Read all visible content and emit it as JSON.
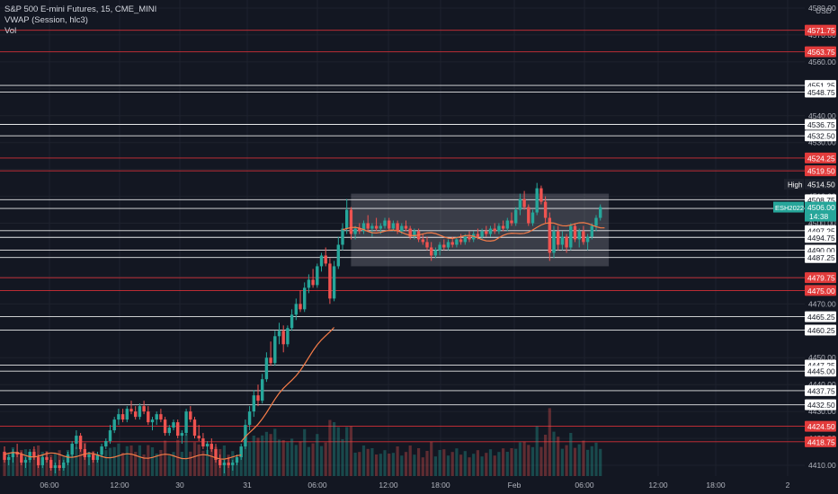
{
  "legend": {
    "symbol_line": "S&P 500 E-mini Futures, 15, CME_MINI",
    "indicator_vwap": "VWAP (Session, hlc3)",
    "indicator_vol": "Vol"
  },
  "currency": "USD",
  "colors": {
    "background": "#131722",
    "up": "#26a69a",
    "down": "#ef5350",
    "vwap": "#f57c48",
    "support_line": "#ffffff",
    "resistance_line": "#e8333a",
    "price_tag": "#26a69a"
  },
  "chart_data": {
    "type": "candlestick",
    "title": "S&P 500 E-mini Futures, 15, CME_MINI",
    "ylim": [
      4406,
      4583
    ],
    "y_ticks": [
      4410,
      4420,
      4430,
      4440,
      4450,
      4460,
      4470,
      4480,
      4490,
      4500,
      4510,
      4520,
      4530,
      4540,
      4550,
      4560,
      4570,
      4580
    ],
    "x_ticks": [
      "06:00",
      "12:00",
      "30",
      "31",
      "06:00",
      "12:00",
      "18:00",
      "Feb",
      "06:00",
      "12:00",
      "18:00",
      "2"
    ],
    "horizontal_levels": [
      {
        "price": 4571.75,
        "label": "4571.75",
        "kind": "resistance"
      },
      {
        "price": 4563.75,
        "label": "4563.75",
        "kind": "resistance"
      },
      {
        "price": 4551.25,
        "label": "4551.25",
        "kind": "support"
      },
      {
        "price": 4548.75,
        "label": "4548.75",
        "kind": "support"
      },
      {
        "price": 4536.75,
        "label": "4536.75",
        "kind": "support"
      },
      {
        "price": 4532.5,
        "label": "4532.50",
        "kind": "support"
      },
      {
        "price": 4524.25,
        "label": "4524.25",
        "kind": "resistance"
      },
      {
        "price": 4519.5,
        "label": "4519.50",
        "kind": "resistance"
      },
      {
        "price": 4508.75,
        "label": "4508.75",
        "kind": "support"
      },
      {
        "price": 4505.5,
        "label": "4505.50",
        "kind": "support"
      },
      {
        "price": 4497.25,
        "label": "4497.25",
        "kind": "support"
      },
      {
        "price": 4494.75,
        "label": "4494.75",
        "kind": "support"
      },
      {
        "price": 4490.0,
        "label": "4490.00",
        "kind": "support"
      },
      {
        "price": 4487.25,
        "label": "4487.25",
        "kind": "support"
      },
      {
        "price": 4479.75,
        "label": "4479.75",
        "kind": "resistance"
      },
      {
        "price": 4475.0,
        "label": "4475.00",
        "kind": "resistance"
      },
      {
        "price": 4465.25,
        "label": "4465.25",
        "kind": "support"
      },
      {
        "price": 4460.25,
        "label": "4460.25",
        "kind": "support"
      },
      {
        "price": 4447.25,
        "label": "4447.25",
        "kind": "support"
      },
      {
        "price": 4445.0,
        "label": "4445.00",
        "kind": "support"
      },
      {
        "price": 4437.75,
        "label": "4437.75",
        "kind": "support"
      },
      {
        "price": 4432.5,
        "label": "4432.50",
        "kind": "support"
      },
      {
        "price": 4424.5,
        "label": "4424.50",
        "kind": "resistance"
      },
      {
        "price": 4418.75,
        "label": "4418.75",
        "kind": "resistance"
      }
    ],
    "high_marker": {
      "label": "High",
      "price": 4514.5,
      "price_label": "4514.50"
    },
    "last_price": {
      "symbol": "ESH2022",
      "price": 4506.0,
      "price_label": "4506.00",
      "countdown": "14:38"
    },
    "range_box": {
      "start_bar": 82,
      "end_bar": 143,
      "top": 4511,
      "bottom": 4484
    },
    "question_marks": [
      {
        "text": "?",
        "bar": 195,
        "price": 4540
      },
      {
        "text": "?",
        "bar": 192,
        "price": 4455
      }
    ],
    "candles": [
      [
        4415,
        4417,
        4411,
        4412
      ],
      [
        4412,
        4414,
        4410,
        4413
      ],
      [
        4413,
        4416,
        4411,
        4415
      ],
      [
        4415,
        4418,
        4413,
        4414
      ],
      [
        4414,
        4415,
        4410,
        4411
      ],
      [
        4411,
        4413,
        4409,
        4412
      ],
      [
        4412,
        4416,
        4411,
        4415
      ],
      [
        4415,
        4417,
        4412,
        4413
      ],
      [
        4413,
        4414,
        4409,
        4410
      ],
      [
        4410,
        4414,
        4409,
        4413
      ],
      [
        4413,
        4415,
        4411,
        4412
      ],
      [
        4412,
        4413,
        4408,
        4409
      ],
      [
        4409,
        4411,
        4407,
        4410
      ],
      [
        4410,
        4412,
        4408,
        4409
      ],
      [
        4409,
        4412,
        4408,
        4411
      ],
      [
        4411,
        4415,
        4410,
        4414
      ],
      [
        4414,
        4419,
        4413,
        4418
      ],
      [
        4418,
        4423,
        4416,
        4421
      ],
      [
        4421,
        4422,
        4415,
        4416
      ],
      [
        4416,
        4418,
        4412,
        4413
      ],
      [
        4413,
        4415,
        4410,
        4414
      ],
      [
        4414,
        4415,
        4411,
        4412
      ],
      [
        4412,
        4415,
        4411,
        4414
      ],
      [
        4414,
        4418,
        4413,
        4417
      ],
      [
        4417,
        4420,
        4416,
        4419
      ],
      [
        4419,
        4425,
        4418,
        4423
      ],
      [
        4423,
        4428,
        4422,
        4427
      ],
      [
        4427,
        4431,
        4425,
        4429
      ],
      [
        4429,
        4431,
        4426,
        4427
      ],
      [
        4427,
        4432,
        4426,
        4431
      ],
      [
        4431,
        4434,
        4429,
        4430
      ],
      [
        4430,
        4432,
        4427,
        4428
      ],
      [
        4428,
        4433,
        4427,
        4432
      ],
      [
        4432,
        4434,
        4429,
        4430
      ],
      [
        4430,
        4432,
        4425,
        4426
      ],
      [
        4426,
        4428,
        4423,
        4427
      ],
      [
        4427,
        4430,
        4425,
        4429
      ],
      [
        4429,
        4431,
        4426,
        4427
      ],
      [
        4427,
        4428,
        4421,
        4422
      ],
      [
        4422,
        4425,
        4421,
        4424
      ],
      [
        4424,
        4427,
        4423,
        4426
      ],
      [
        4426,
        4427,
        4420,
        4421
      ],
      [
        4421,
        4423,
        4418,
        4422
      ],
      [
        4422,
        4431,
        4421,
        4430
      ],
      [
        4430,
        4432,
        4426,
        4427
      ],
      [
        4427,
        4428,
        4420,
        4421
      ],
      [
        4421,
        4425,
        4419,
        4420
      ],
      [
        4420,
        4422,
        4416,
        4417
      ],
      [
        4417,
        4419,
        4414,
        4418
      ],
      [
        4418,
        4420,
        4415,
        4416
      ],
      [
        4416,
        4418,
        4411,
        4412
      ],
      [
        4412,
        4414,
        4409,
        4410
      ],
      [
        4410,
        4412,
        4407,
        4411
      ],
      [
        4411,
        4413,
        4409,
        4410
      ],
      [
        4410,
        4412,
        4408,
        4411
      ],
      [
        4411,
        4414,
        4410,
        4413
      ],
      [
        4413,
        4418,
        4412,
        4417
      ],
      [
        4417,
        4427,
        4416,
        4425
      ],
      [
        4425,
        4432,
        4423,
        4430
      ],
      [
        4430,
        4438,
        4428,
        4436
      ],
      [
        4436,
        4440,
        4432,
        4434
      ],
      [
        4434,
        4444,
        4433,
        4442
      ],
      [
        4442,
        4452,
        4441,
        4450
      ],
      [
        4450,
        4456,
        4447,
        4448
      ],
      [
        4448,
        4460,
        4447,
        4458
      ],
      [
        4458,
        4463,
        4455,
        4460
      ],
      [
        4460,
        4462,
        4452,
        4455
      ],
      [
        4455,
        4462,
        4454,
        4461
      ],
      [
        4461,
        4468,
        4460,
        4466
      ],
      [
        4466,
        4472,
        4464,
        4470
      ],
      [
        4470,
        4475,
        4467,
        4468
      ],
      [
        4468,
        4478,
        4467,
        4476
      ],
      [
        4476,
        4481,
        4474,
        4479
      ],
      [
        4479,
        4483,
        4476,
        4477
      ],
      [
        4477,
        4485,
        4476,
        4484
      ],
      [
        4484,
        4489,
        4482,
        4488
      ],
      [
        4488,
        4491,
        4484,
        4485
      ],
      [
        4485,
        4487,
        4470,
        4472
      ],
      [
        4472,
        4486,
        4471,
        4484
      ],
      [
        4484,
        4495,
        4483,
        4492
      ],
      [
        4492,
        4500,
        4490,
        4498
      ],
      [
        4498,
        4509,
        4496,
        4505
      ],
      [
        4505,
        4506,
        4494,
        4496
      ],
      [
        4496,
        4499,
        4494,
        4498
      ],
      [
        4498,
        4500,
        4496,
        4497
      ],
      [
        4497,
        4501,
        4496,
        4500
      ],
      [
        4500,
        4503,
        4497,
        4498
      ],
      [
        4498,
        4500,
        4495,
        4499
      ],
      [
        4499,
        4502,
        4497,
        4498
      ],
      [
        4498,
        4500,
        4496,
        4499
      ],
      [
        4499,
        4502,
        4498,
        4501
      ],
      [
        4501,
        4502,
        4497,
        4498
      ],
      [
        4498,
        4501,
        4497,
        4500
      ],
      [
        4500,
        4501,
        4496,
        4497
      ],
      [
        4497,
        4500,
        4496,
        4499
      ],
      [
        4499,
        4501,
        4497,
        4498
      ],
      [
        4498,
        4499,
        4494,
        4495
      ],
      [
        4495,
        4498,
        4494,
        4497
      ],
      [
        4497,
        4498,
        4493,
        4494
      ],
      [
        4494,
        4496,
        4492,
        4493
      ],
      [
        4493,
        4495,
        4490,
        4491
      ],
      [
        4491,
        4493,
        4486,
        4488
      ],
      [
        4488,
        4491,
        4487,
        4490
      ],
      [
        4490,
        4493,
        4488,
        4492
      ],
      [
        4492,
        4494,
        4490,
        4491
      ],
      [
        4491,
        4494,
        4490,
        4493
      ],
      [
        4493,
        4495,
        4491,
        4492
      ],
      [
        4492,
        4495,
        4491,
        4494
      ],
      [
        4494,
        4496,
        4492,
        4493
      ],
      [
        4493,
        4496,
        4492,
        4495
      ],
      [
        4495,
        4497,
        4493,
        4494
      ],
      [
        4494,
        4497,
        4493,
        4496
      ],
      [
        4496,
        4498,
        4494,
        4495
      ],
      [
        4495,
        4498,
        4494,
        4497
      ],
      [
        4497,
        4499,
        4495,
        4496
      ],
      [
        4496,
        4499,
        4495,
        4498
      ],
      [
        4498,
        4500,
        4496,
        4497
      ],
      [
        4497,
        4500,
        4496,
        4499
      ],
      [
        4499,
        4501,
        4497,
        4498
      ],
      [
        4498,
        4502,
        4497,
        4501
      ],
      [
        4501,
        4504,
        4499,
        4500
      ],
      [
        4500,
        4506,
        4499,
        4505
      ],
      [
        4505,
        4511,
        4503,
        4509
      ],
      [
        4509,
        4512,
        4505,
        4506
      ],
      [
        4506,
        4507,
        4499,
        4500
      ],
      [
        4500,
        4505,
        4499,
        4504
      ],
      [
        4504,
        4515,
        4503,
        4513
      ],
      [
        4513,
        4514,
        4507,
        4508
      ],
      [
        4508,
        4510,
        4500,
        4502
      ],
      [
        4502,
        4504,
        4486,
        4489
      ],
      [
        4489,
        4499,
        4487,
        4497
      ],
      [
        4497,
        4499,
        4490,
        4492
      ],
      [
        4492,
        4497,
        4490,
        4495
      ],
      [
        4495,
        4496,
        4489,
        4491
      ],
      [
        4491,
        4500,
        4490,
        4499
      ],
      [
        4499,
        4500,
        4493,
        4494
      ],
      [
        4494,
        4498,
        4491,
        4497
      ],
      [
        4497,
        4499,
        4492,
        4493
      ],
      [
        4493,
        4496,
        4490,
        4495
      ],
      [
        4495,
        4500,
        4494,
        4499
      ],
      [
        4499,
        4503,
        4497,
        4502
      ],
      [
        4502,
        4507,
        4501,
        4506
      ]
    ],
    "vwap": [
      {
        "start": 0,
        "end": 56,
        "from": 4414,
        "to": 4413
      },
      {
        "start": 56,
        "end": 78,
        "from": 4418,
        "to": 4462
      },
      {
        "start": 80,
        "end": 116,
        "from": 4498,
        "to": 4494
      },
      {
        "start": 116,
        "end": 130,
        "from": 4494,
        "to": 4500
      },
      {
        "start": 130,
        "end": 142,
        "from": 4500,
        "to": 4499
      }
    ]
  }
}
